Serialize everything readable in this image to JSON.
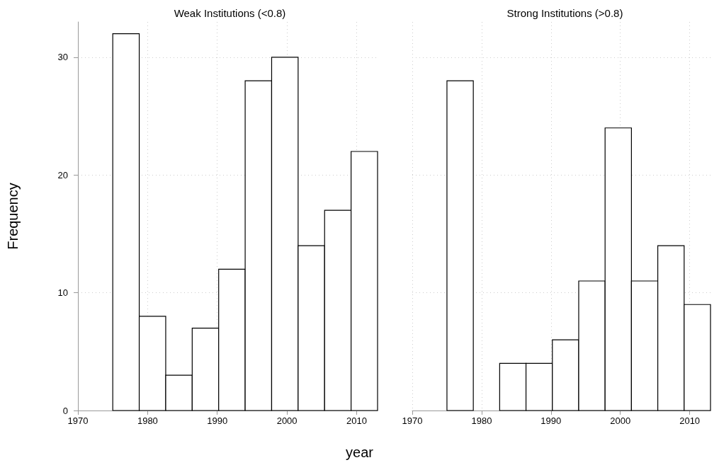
{
  "chart_data": [
    {
      "type": "histogram",
      "title": "Weak Institutions (<0.8)",
      "xlabel": "year",
      "ylabel": "Frequency",
      "bins": [
        1975,
        1978.8,
        1982.6,
        1986.4,
        1990.2,
        1994,
        1997.8,
        2001.6,
        2005.4,
        2009.2,
        2013
      ],
      "values": [
        32,
        8,
        3,
        7,
        12,
        28,
        30,
        14,
        17,
        22
      ],
      "color": "#ffffff",
      "xlim": [
        1970,
        2013
      ],
      "xticks": [
        1970,
        1980,
        1990,
        2000,
        2010
      ],
      "ylim": [
        0,
        33
      ],
      "yticks": [
        0,
        10,
        20,
        30
      ],
      "grid": true
    },
    {
      "type": "histogram",
      "title": "Strong Institutions (>0.8)",
      "bins": [
        1975,
        1978.8,
        1982.6,
        1986.4,
        1990.2,
        1994,
        1997.8,
        2001.6,
        2005.4,
        2009.2,
        2013
      ],
      "values": [
        28,
        0,
        4,
        4,
        6,
        11,
        24,
        11,
        14,
        9
      ],
      "color": "#ffffff",
      "xlim": [
        1970,
        2013
      ],
      "xticks": [
        1970,
        1980,
        1990,
        2000,
        2010
      ],
      "ylim": [
        0,
        33
      ],
      "yticks": [
        0,
        10,
        20,
        30
      ],
      "grid": true,
      "tick_labels": "x"
    }
  ]
}
